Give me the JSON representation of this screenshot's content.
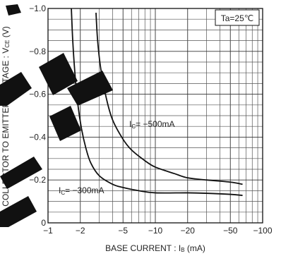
{
  "chart_data": {
    "type": "line",
    "title": "",
    "xlabel": "BASE  CURRENT : I",
    "xlabel_sub": "B",
    "xlabel_unit": " (mA)",
    "ylabel_prefix": "COLLECTOR  TO  EMITTER  VOLTAGE : V",
    "ylabel_sub": "CE",
    "ylabel_unit": " (V)",
    "x_scale": "log",
    "x_range": [
      -1,
      -100
    ],
    "y_range": [
      0,
      -1.0
    ],
    "x_ticks": [
      -1,
      -2,
      -5,
      -10,
      -20,
      -50,
      -100
    ],
    "x_tick_labels": [
      "−1",
      "−2",
      "−5",
      "−10",
      "−20",
      "−50",
      "−100"
    ],
    "y_ticks": [
      0,
      -0.2,
      -0.4,
      -0.6,
      -0.8,
      -1.0
    ],
    "y_tick_labels": [
      "0",
      "−0.2",
      "−0.4",
      "−0.6",
      "−0.8",
      "−1.0"
    ],
    "grid": true,
    "condition_label": "Ta=25℃",
    "series": [
      {
        "name": "I₀= −300mA",
        "label_main": "I",
        "label_sub": "C",
        "label_rest": "= −300mA",
        "x": [
          -1.65,
          -1.7,
          -1.78,
          -1.9,
          -2.05,
          -2.25,
          -2.5,
          -3,
          -4,
          -5,
          -7,
          -10,
          -20,
          -30,
          -50,
          -65
        ],
        "y": [
          -1.0,
          -0.85,
          -0.7,
          -0.55,
          -0.44,
          -0.35,
          -0.28,
          -0.22,
          -0.18,
          -0.165,
          -0.15,
          -0.14,
          -0.14,
          -0.138,
          -0.133,
          -0.128
        ]
      },
      {
        "name": "I₀= −500mA",
        "label_main": "I",
        "label_sub": "C",
        "label_rest": "= −500mA",
        "x": [
          -2.8,
          -2.9,
          -3.1,
          -3.5,
          -4,
          -5,
          -6,
          -8,
          -10,
          -15,
          -20,
          -30,
          -50,
          -65
        ],
        "y": [
          -0.98,
          -0.85,
          -0.72,
          -0.58,
          -0.48,
          -0.39,
          -0.34,
          -0.29,
          -0.26,
          -0.23,
          -0.21,
          -0.2,
          -0.19,
          -0.18
        ]
      }
    ]
  }
}
